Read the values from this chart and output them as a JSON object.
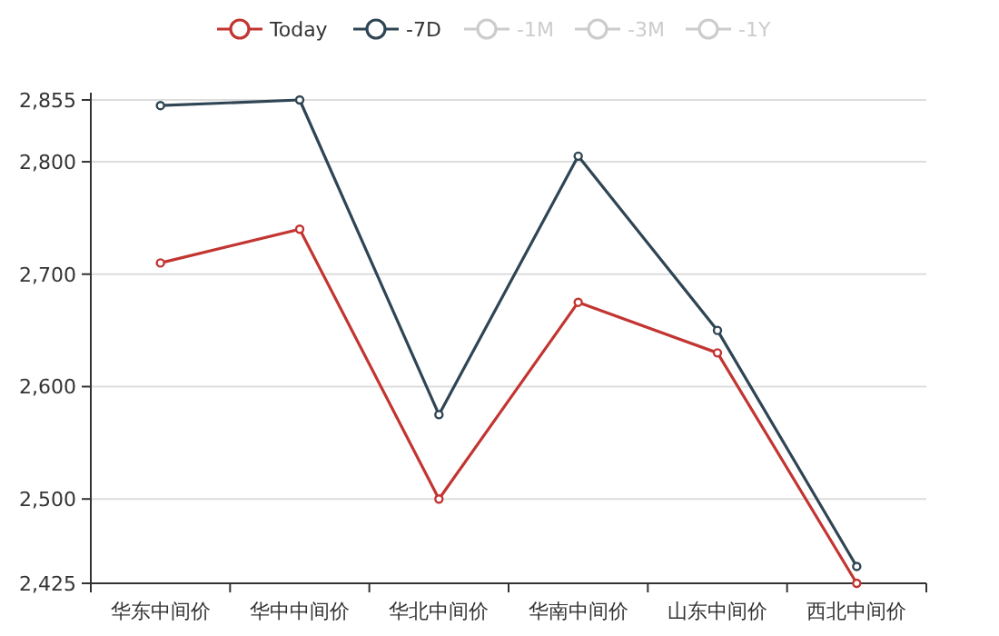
{
  "chart_data": {
    "type": "line",
    "categories": [
      "华东中间价",
      "华中中间价",
      "华北中间价",
      "华南中间价",
      "山东中间价",
      "西北中间价"
    ],
    "series": [
      {
        "name": "Today",
        "color": "#c23531",
        "values": [
          2710,
          2740,
          2500,
          2675,
          2630,
          2425
        ]
      },
      {
        "name": "-7D",
        "color": "#2f4554",
        "values": [
          2850,
          2855,
          2575,
          2805,
          2650,
          2440
        ]
      },
      {
        "name": "-1M",
        "color": "#cccccc",
        "values": [
          null,
          null,
          null,
          null,
          null,
          null
        ]
      },
      {
        "name": "-3M",
        "color": "#cccccc",
        "values": [
          null,
          null,
          null,
          null,
          null,
          null
        ]
      },
      {
        "name": "-1Y",
        "color": "#cccccc",
        "values": [
          null,
          null,
          null,
          null,
          null,
          null
        ]
      }
    ],
    "ylim": [
      2425,
      2855
    ],
    "yticks": [
      {
        "value": 2425,
        "label": "2,425"
      },
      {
        "value": 2500,
        "label": "2,500"
      },
      {
        "value": 2600,
        "label": "2,600"
      },
      {
        "value": 2700,
        "label": "2,700"
      },
      {
        "value": 2800,
        "label": "2,800"
      },
      {
        "value": 2855,
        "label": "2,855"
      }
    ],
    "grid": "y",
    "legend": "top",
    "marker": "circle",
    "line_style": "solid"
  }
}
